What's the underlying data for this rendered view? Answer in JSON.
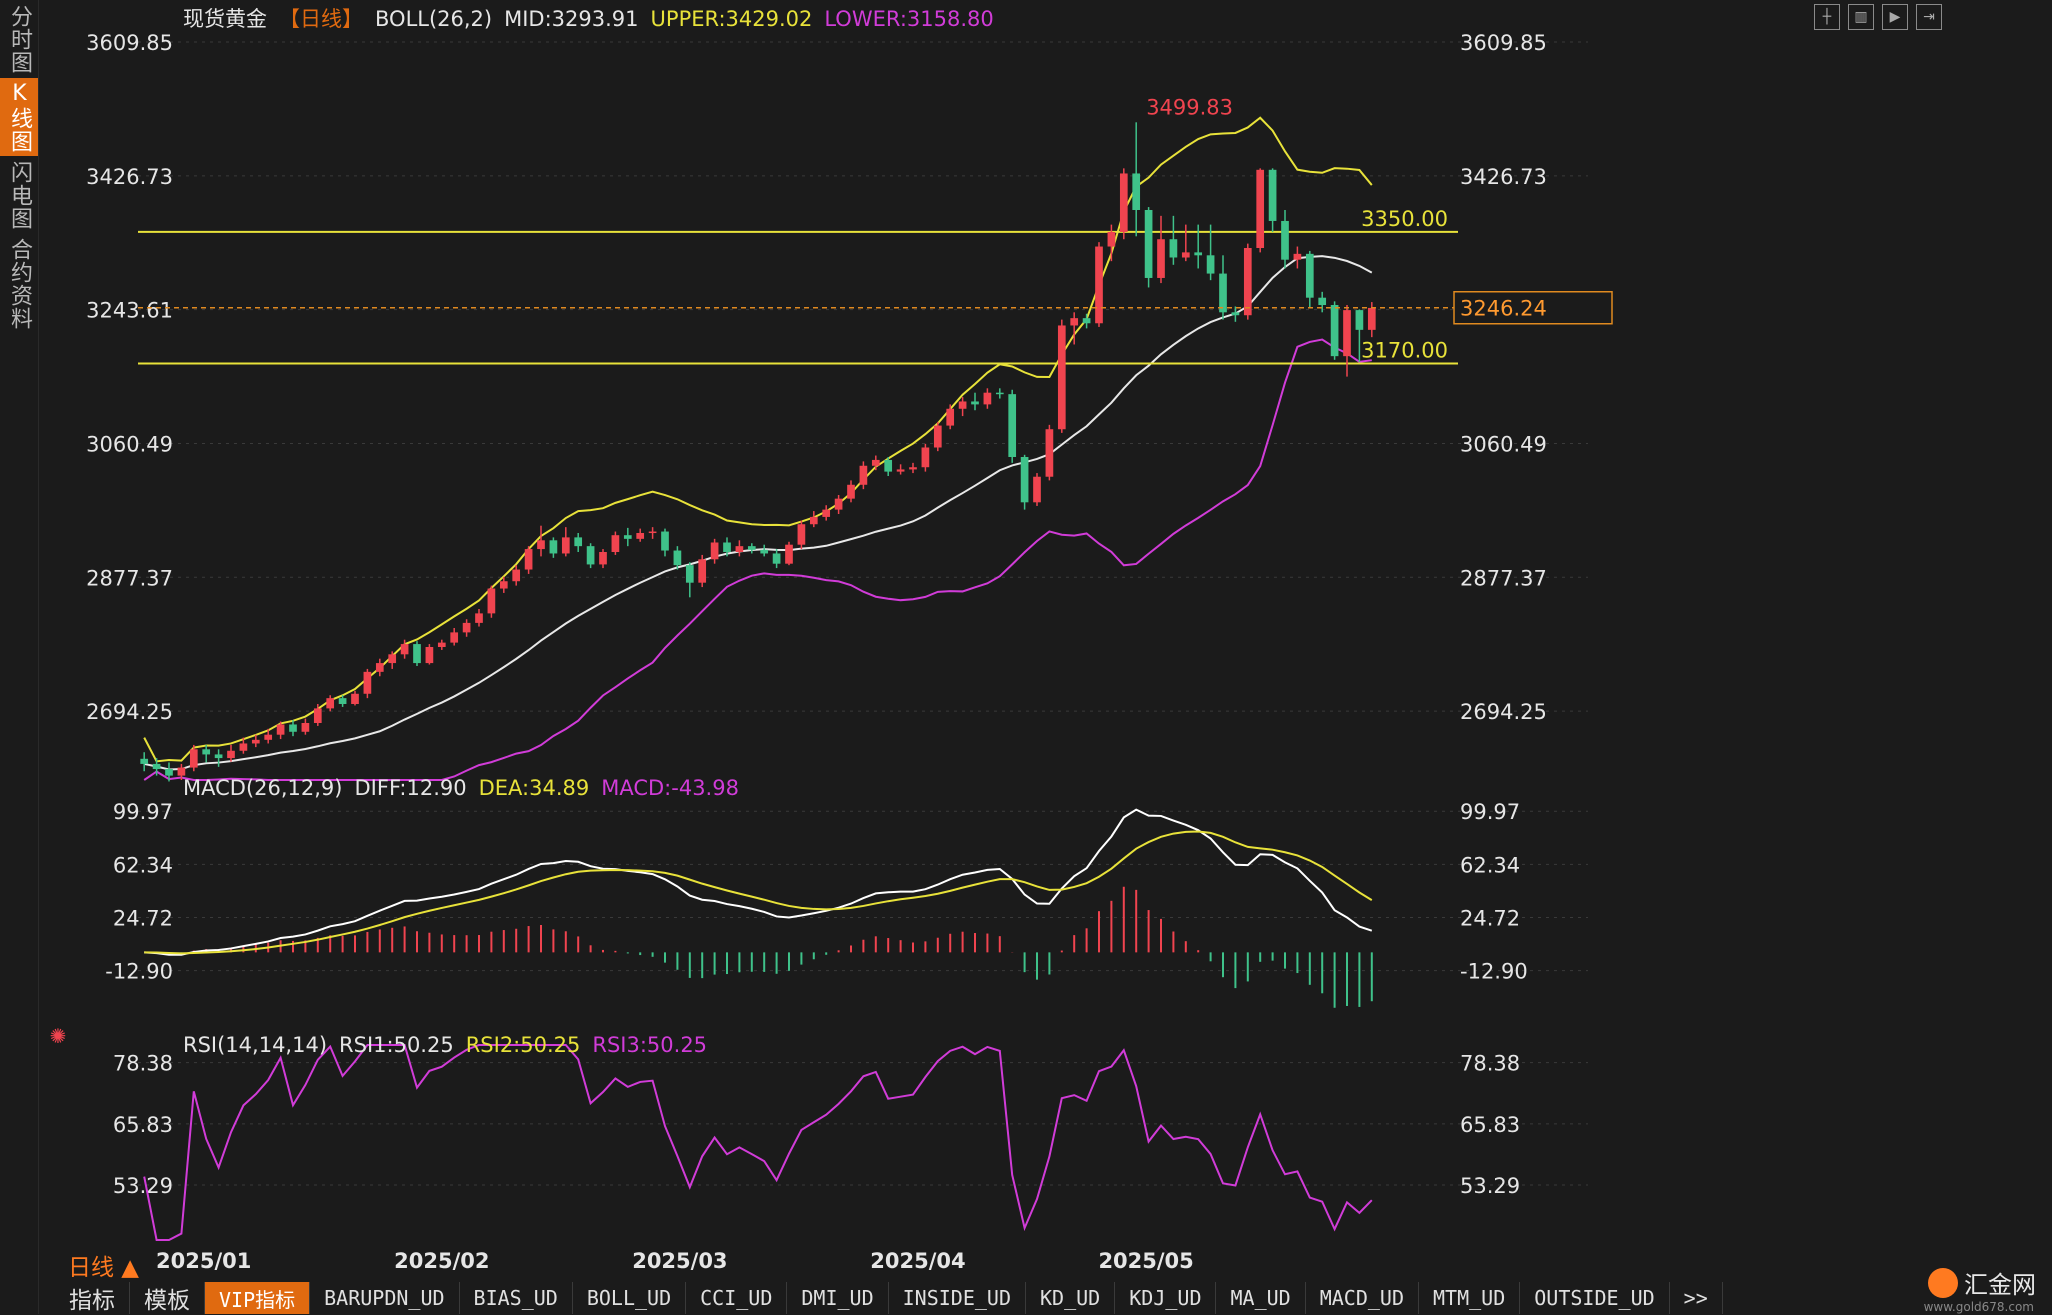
{
  "instrument": "现货黄金",
  "period_label": "【日线】",
  "boll": {
    "label": "BOLL(26,2)",
    "mid": "MID:3293.91",
    "upper": "UPPER:3429.02",
    "lower": "LOWER:3158.80"
  },
  "macd": {
    "label": "MACD(26,12,9)",
    "diff": "DIFF:12.90",
    "dea": "DEA:34.89",
    "macd": "MACD:-43.98"
  },
  "rsi": {
    "label": "RSI(14,14,14)",
    "rsi1": "RSI1:50.25",
    "rsi2": "RSI2:50.25",
    "rsi3": "RSI3:50.25"
  },
  "left_tabs": [
    "分时图",
    "K线图",
    "闪电图",
    "合约资料"
  ],
  "bottom_tabs": [
    "指标",
    "模板",
    "VIP指标",
    "BARUPDN_UD",
    "BIAS_UD",
    "BOLL_UD",
    "CCI_UD",
    "DMI_UD",
    "INSIDE_UD",
    "KD_UD",
    "KDJ_UD",
    "MA_UD",
    "MACD_UD",
    "MTM_UD",
    "OUTSIDE_UD",
    ">>"
  ],
  "period_button": "日线 ▲",
  "logo_text": "汇金网",
  "logo_url": "www.gold678.com",
  "colors": {
    "up": "#f0444f",
    "down": "#3fc28a",
    "upper": "#e8e23a",
    "mid": "#e8e8e8",
    "lower": "#d13cd8",
    "dea": "#e8e23a",
    "rsi": "#d13cd8",
    "accent": "#e06a10"
  },
  "chart_data": [
    {
      "type": "candlestick",
      "ylim": [
        2600,
        3640
      ],
      "y_ticks": [
        "3609.85",
        "3426.73",
        "3243.61",
        "3060.49",
        "2877.37",
        "2694.25"
      ],
      "x_labels": [
        "2025/01",
        "2025/02",
        "2025/03",
        "2025/04",
        "2025/05"
      ],
      "horizontal_lines": [
        {
          "value": 3350.0,
          "label": "3350.00"
        },
        {
          "value": 3170.0,
          "label": "3170.00"
        }
      ],
      "current_price": {
        "value": 3246.24,
        "label": "3246.24"
      },
      "max_marker": {
        "value": 3499.83,
        "label": "3499.83"
      },
      "candles": [
        [
          2629,
          2622,
          2612,
          2638
        ],
        [
          2622,
          2615,
          2606,
          2630
        ],
        [
          2615,
          2606,
          2598,
          2624
        ],
        [
          2606,
          2617,
          2600,
          2622
        ],
        [
          2617,
          2642,
          2612,
          2648
        ],
        [
          2642,
          2635,
          2624,
          2648
        ],
        [
          2635,
          2630,
          2618,
          2642
        ],
        [
          2630,
          2640,
          2625,
          2648
        ],
        [
          2640,
          2650,
          2636,
          2658
        ],
        [
          2650,
          2655,
          2645,
          2662
        ],
        [
          2655,
          2662,
          2650,
          2670
        ],
        [
          2662,
          2676,
          2656,
          2680
        ],
        [
          2676,
          2666,
          2660,
          2682
        ],
        [
          2666,
          2678,
          2662,
          2684
        ],
        [
          2678,
          2698,
          2674,
          2704
        ],
        [
          2698,
          2712,
          2694,
          2716
        ],
        [
          2712,
          2704,
          2700,
          2716
        ],
        [
          2704,
          2718,
          2702,
          2722
        ],
        [
          2718,
          2748,
          2712,
          2752
        ],
        [
          2748,
          2760,
          2742,
          2766
        ],
        [
          2760,
          2772,
          2752,
          2776
        ],
        [
          2772,
          2786,
          2766,
          2792
        ],
        [
          2786,
          2760,
          2756,
          2790
        ],
        [
          2760,
          2782,
          2758,
          2786
        ],
        [
          2782,
          2788,
          2778,
          2792
        ],
        [
          2788,
          2802,
          2784,
          2808
        ],
        [
          2802,
          2815,
          2796,
          2820
        ],
        [
          2815,
          2828,
          2810,
          2834
        ],
        [
          2828,
          2862,
          2822,
          2866
        ],
        [
          2862,
          2872,
          2856,
          2878
        ],
        [
          2872,
          2888,
          2866,
          2894
        ],
        [
          2888,
          2916,
          2882,
          2920
        ],
        [
          2916,
          2928,
          2906,
          2948
        ],
        [
          2928,
          2910,
          2904,
          2932
        ],
        [
          2910,
          2932,
          2906,
          2946
        ],
        [
          2932,
          2920,
          2912,
          2938
        ],
        [
          2920,
          2895,
          2890,
          2924
        ],
        [
          2895,
          2912,
          2890,
          2916
        ],
        [
          2912,
          2935,
          2908,
          2940
        ],
        [
          2935,
          2930,
          2920,
          2945
        ],
        [
          2930,
          2938,
          2926,
          2944
        ],
        [
          2938,
          2940,
          2930,
          2946
        ],
        [
          2940,
          2914,
          2906,
          2944
        ],
        [
          2914,
          2894,
          2888,
          2920
        ],
        [
          2894,
          2870,
          2850,
          2898
        ],
        [
          2870,
          2902,
          2864,
          2908
        ],
        [
          2902,
          2925,
          2896,
          2930
        ],
        [
          2925,
          2912,
          2906,
          2932
        ],
        [
          2912,
          2920,
          2906,
          2928
        ],
        [
          2920,
          2915,
          2910,
          2924
        ],
        [
          2915,
          2910,
          2906,
          2922
        ],
        [
          2910,
          2896,
          2890,
          2916
        ],
        [
          2896,
          2922,
          2894,
          2926
        ],
        [
          2922,
          2950,
          2916,
          2955
        ],
        [
          2950,
          2960,
          2946,
          2968
        ],
        [
          2960,
          2970,
          2955,
          2976
        ],
        [
          2970,
          2985,
          2964,
          2990
        ],
        [
          2985,
          3004,
          2980,
          3010
        ],
        [
          3004,
          3030,
          2998,
          3036
        ],
        [
          3030,
          3038,
          3024,
          3044
        ],
        [
          3038,
          3022,
          3016,
          3042
        ],
        [
          3022,
          3025,
          3018,
          3032
        ],
        [
          3025,
          3028,
          3020,
          3034
        ],
        [
          3028,
          3055,
          3022,
          3060
        ],
        [
          3055,
          3085,
          3050,
          3090
        ],
        [
          3085,
          3108,
          3080,
          3114
        ],
        [
          3108,
          3118,
          3098,
          3124
        ],
        [
          3118,
          3114,
          3106,
          3130
        ],
        [
          3114,
          3130,
          3108,
          3136
        ],
        [
          3130,
          3128,
          3122,
          3136
        ],
        [
          3128,
          3042,
          3034,
          3134
        ],
        [
          3042,
          2980,
          2970,
          3045
        ],
        [
          2980,
          3015,
          2975,
          3020
        ],
        [
          3015,
          3080,
          3010,
          3086
        ],
        [
          3080,
          3222,
          3075,
          3230
        ],
        [
          3222,
          3232,
          3196,
          3240
        ],
        [
          3232,
          3225,
          3218,
          3238
        ],
        [
          3225,
          3330,
          3220,
          3336
        ],
        [
          3330,
          3350,
          3310,
          3360
        ],
        [
          3350,
          3430,
          3340,
          3437
        ],
        [
          3430,
          3380,
          3344,
          3500
        ],
        [
          3380,
          3287,
          3274,
          3384
        ],
        [
          3287,
          3340,
          3280,
          3372
        ],
        [
          3340,
          3315,
          3305,
          3372
        ],
        [
          3315,
          3322,
          3310,
          3360
        ],
        [
          3322,
          3318,
          3300,
          3360
        ],
        [
          3318,
          3293,
          3284,
          3360
        ],
        [
          3293,
          3240,
          3230,
          3318
        ],
        [
          3240,
          3236,
          3227,
          3248
        ],
        [
          3236,
          3328,
          3230,
          3334
        ],
        [
          3328,
          3435,
          3322,
          3437
        ],
        [
          3435,
          3365,
          3350,
          3437
        ],
        [
          3365,
          3312,
          3300,
          3380
        ],
        [
          3312,
          3320,
          3300,
          3330
        ],
        [
          3320,
          3260,
          3246,
          3324
        ],
        [
          3260,
          3250,
          3240,
          3268
        ],
        [
          3250,
          3180,
          3175,
          3255
        ],
        [
          3180,
          3243,
          3152,
          3250
        ],
        [
          3243,
          3216,
          3172,
          3244
        ],
        [
          3216,
          3246,
          3206,
          3254
        ]
      ]
    },
    {
      "type": "line",
      "title": "MACD(26,12,9)",
      "ylim": [
        -55,
        115
      ],
      "y_ticks": [
        "99.97",
        "62.34",
        "24.72",
        "-12.90"
      ]
    },
    {
      "type": "line",
      "title": "RSI(14,14,14)",
      "ylim": [
        42,
        82
      ],
      "y_ticks": [
        "78.38",
        "65.83",
        "53.29"
      ]
    }
  ]
}
